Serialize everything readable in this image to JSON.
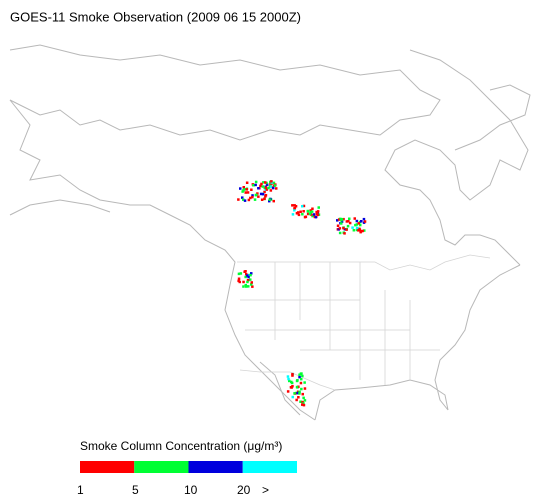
{
  "title": "GOES-11 Smoke Observation (2009 06 15  2000Z)",
  "legend": {
    "label": "Smoke Column Concentration (μg/m³)",
    "bins": [
      {
        "color": "#ff0000"
      },
      {
        "color": "#00ff33"
      },
      {
        "color": "#0000dd"
      },
      {
        "color": "#00ffff"
      }
    ],
    "ticks": [
      "1",
      "5",
      "10",
      "20",
      ">"
    ]
  }
}
